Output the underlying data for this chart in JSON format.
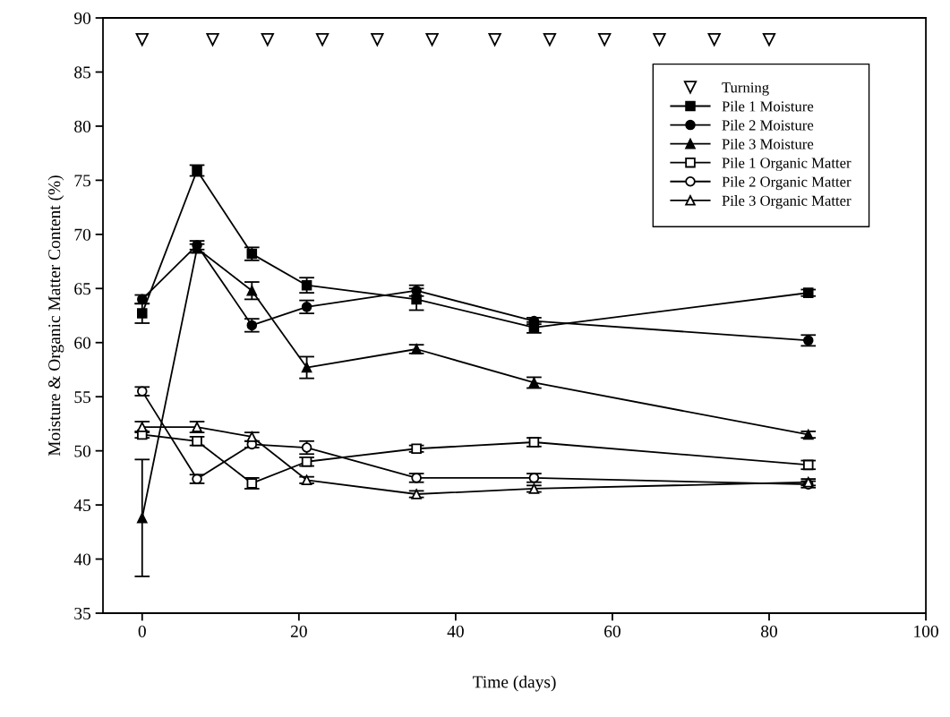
{
  "chart_data": {
    "type": "line",
    "xlabel": "Time (days)",
    "ylabel": "Moisture & Organic Matter Content (%)",
    "x": [
      0,
      7,
      14,
      21,
      35,
      50,
      85
    ],
    "xlim": [
      -5,
      100
    ],
    "xticks": [
      0,
      20,
      40,
      60,
      80,
      100
    ],
    "ylim": [
      35,
      90
    ],
    "yticks": [
      35,
      40,
      45,
      50,
      55,
      60,
      65,
      70,
      75,
      80,
      85,
      90
    ],
    "grid": false,
    "legend": "top right",
    "line_style": "solid",
    "series": [
      {
        "name": "Turning",
        "type": "scatter",
        "marker": "triangle_down_open",
        "color": "#000000",
        "x": [
          0,
          9,
          16,
          23,
          30,
          37,
          45,
          52,
          59,
          66,
          73,
          80
        ],
        "values": [
          88,
          88,
          88,
          88,
          88,
          88,
          88,
          88,
          88,
          88,
          88,
          88
        ]
      },
      {
        "name": "Pile 1 Moisture",
        "marker": "square",
        "color": "#000000",
        "values": [
          62.7,
          75.9,
          68.2,
          65.3,
          64.0,
          61.4,
          64.6
        ],
        "errors": [
          0.9,
          0.5,
          0.6,
          0.7,
          1.0,
          0.5,
          0.3
        ]
      },
      {
        "name": "Pile 2 Moisture",
        "marker": "circle",
        "color": "#000000",
        "values": [
          64.0,
          69.0,
          61.6,
          63.3,
          64.8,
          62.0,
          60.2
        ],
        "errors": [
          0.4,
          0.4,
          0.6,
          0.6,
          0.5,
          0.3,
          0.5
        ]
      },
      {
        "name": "Pile 3 Moisture",
        "marker": "triangle",
        "color": "#000000",
        "values": [
          43.8,
          68.7,
          64.8,
          57.7,
          59.4,
          56.3,
          51.5
        ],
        "errors": [
          5.4,
          0.4,
          0.8,
          1.0,
          0.4,
          0.5,
          0.3
        ]
      },
      {
        "name": "Pile 1 Organic Matter",
        "marker": "square_open",
        "color": "#000000",
        "values": [
          51.5,
          50.9,
          47.0,
          49.0,
          50.2,
          50.8,
          48.7
        ],
        "errors": [
          0.3,
          0.4,
          0.5,
          0.4,
          0.3,
          0.4,
          0.4
        ]
      },
      {
        "name": "Pile 2 Organic Matter",
        "marker": "circle_open",
        "color": "#000000",
        "values": [
          55.5,
          47.4,
          50.6,
          50.3,
          47.5,
          47.5,
          46.9
        ],
        "errors": [
          0.4,
          0.4,
          0.3,
          0.6,
          0.4,
          0.4,
          0.3
        ]
      },
      {
        "name": "Pile 3 Organic Matter",
        "marker": "triangle_open",
        "color": "#000000",
        "values": [
          52.2,
          52.2,
          51.3,
          47.3,
          46.0,
          46.5,
          47.1
        ],
        "errors": [
          0.5,
          0.5,
          0.4,
          0.3,
          0.3,
          0.3,
          0.3
        ]
      }
    ]
  }
}
